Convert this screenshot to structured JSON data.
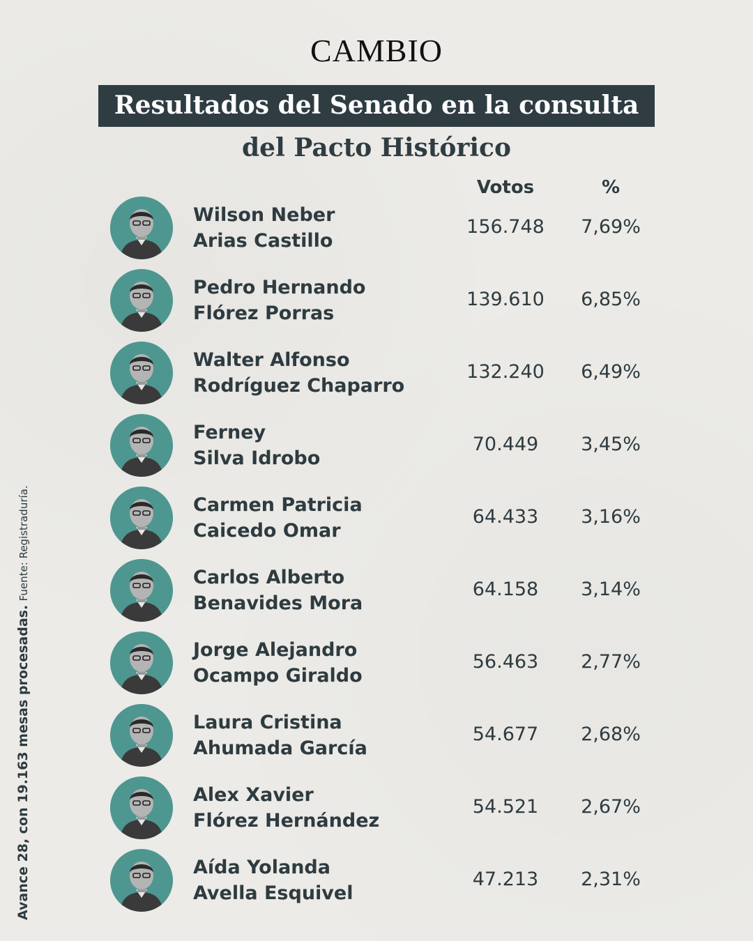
{
  "header": {
    "logo": "CAMBIO",
    "title": "Resultados del Senado en la consulta",
    "subtitle": "del Pacto Histórico"
  },
  "columns": {
    "votes": "Votos",
    "percent": "%"
  },
  "candidates": [
    {
      "line1": "Wilson Neber",
      "line2": "Arias Castillo",
      "votes": "156.748",
      "percent": "7,69%"
    },
    {
      "line1": "Pedro Hernando",
      "line2": "Flórez Porras",
      "votes": "139.610",
      "percent": "6,85%"
    },
    {
      "line1": "Walter Alfonso",
      "line2": "Rodríguez Chaparro",
      "votes": "132.240",
      "percent": "6,49%"
    },
    {
      "line1": "Ferney",
      "line2": "Silva Idrobo",
      "votes": "70.449",
      "percent": "3,45%"
    },
    {
      "line1": "Carmen Patricia",
      "line2": "Caicedo Omar",
      "votes": "64.433",
      "percent": "3,16%"
    },
    {
      "line1": "Carlos Alberto",
      "line2": "Benavides Mora",
      "votes": "64.158",
      "percent": "3,14%"
    },
    {
      "line1": "Jorge Alejandro",
      "line2": "Ocampo Giraldo",
      "votes": "56.463",
      "percent": "2,77%"
    },
    {
      "line1": "Laura Cristina",
      "line2": "Ahumada García",
      "votes": "54.677",
      "percent": "2,68%"
    },
    {
      "line1": "Alex Xavier",
      "line2": "Flórez Hernández",
      "votes": "54.521",
      "percent": "2,67%"
    },
    {
      "line1": "Aída Yolanda",
      "line2": "Avella Esquivel",
      "votes": "47.213",
      "percent": "2,31%"
    }
  ],
  "footer": {
    "note": "Avance 28, con 19.163 mesas procesadas.",
    "source": "Fuente: Registraduría."
  },
  "colors": {
    "title_bg": "#2f3d42",
    "avatar_bg": "#4e9790",
    "text": "#2e3b40",
    "paper": "#ecebe7"
  }
}
